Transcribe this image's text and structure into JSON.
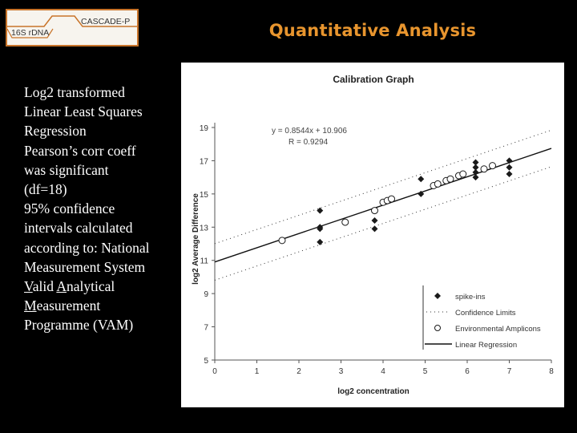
{
  "header": {
    "logo_left": "16S rDNA",
    "logo_right": "CASCADE-P",
    "title": "Quantitative Analysis"
  },
  "bullets": {
    "lines": [
      "Log2 transformed",
      "Linear Least Squares",
      "Regression",
      "Pearson’s corr coeff",
      "was significant",
      "(df=18)",
      "95% confidence",
      "intervals calculated",
      "according to: National",
      "Measurement System",
      "Valid Analytical",
      "Measurement",
      "Programme (VAM)"
    ]
  },
  "chart_data": {
    "type": "scatter",
    "title": "Calibration Graph",
    "xlabel": "log2 concentration",
    "ylabel": "log2 Average Difference",
    "xlim": [
      0,
      8
    ],
    "ylim": [
      5,
      19
    ],
    "x_ticks": [
      "0",
      "1",
      "2",
      "3",
      "4",
      "5",
      "6",
      "7",
      "8"
    ],
    "y_ticks": [
      "5",
      "7",
      "9",
      "11",
      "13",
      "15",
      "17",
      "19"
    ],
    "equation": "y = 0.8544x + 10.906",
    "r_value": "R = 0.9294",
    "regression": {
      "slope": 0.8544,
      "intercept": 10.906
    },
    "confidence_offset": 1.1,
    "legend_position": "bottom-right",
    "series": [
      {
        "name": "spike-ins",
        "marker": "diamond",
        "color": "#1a1a1a",
        "points": [
          [
            2.5,
            14.0
          ],
          [
            2.5,
            13.0
          ],
          [
            2.5,
            12.9
          ],
          [
            2.5,
            12.1
          ],
          [
            3.8,
            13.4
          ],
          [
            3.8,
            12.9
          ],
          [
            4.9,
            15.9
          ],
          [
            4.9,
            15.0
          ],
          [
            6.2,
            16.9
          ],
          [
            6.2,
            16.6
          ],
          [
            6.2,
            16.3
          ],
          [
            6.2,
            16.0
          ],
          [
            7.0,
            17.0
          ],
          [
            7.0,
            16.6
          ],
          [
            7.0,
            16.2
          ]
        ]
      },
      {
        "name": "Environmental Amplicons",
        "marker": "circle",
        "color": "#1a1a1a",
        "points": [
          [
            1.6,
            12.2
          ],
          [
            3.1,
            13.3
          ],
          [
            3.8,
            14.0
          ],
          [
            4.0,
            14.5
          ],
          [
            4.1,
            14.6
          ],
          [
            4.2,
            14.7
          ],
          [
            5.2,
            15.5
          ],
          [
            5.3,
            15.6
          ],
          [
            5.5,
            15.8
          ],
          [
            5.6,
            15.9
          ],
          [
            5.8,
            16.1
          ],
          [
            5.9,
            16.2
          ],
          [
            6.4,
            16.5
          ],
          [
            6.6,
            16.7
          ]
        ]
      }
    ],
    "legend": [
      {
        "label": "spike-ins",
        "symbol": "diamond"
      },
      {
        "label": "Confidence Limits",
        "symbol": "dotted"
      },
      {
        "label": "Environmental Amplicons",
        "symbol": "circle"
      },
      {
        "label": "Linear Regression",
        "symbol": "line"
      }
    ]
  }
}
